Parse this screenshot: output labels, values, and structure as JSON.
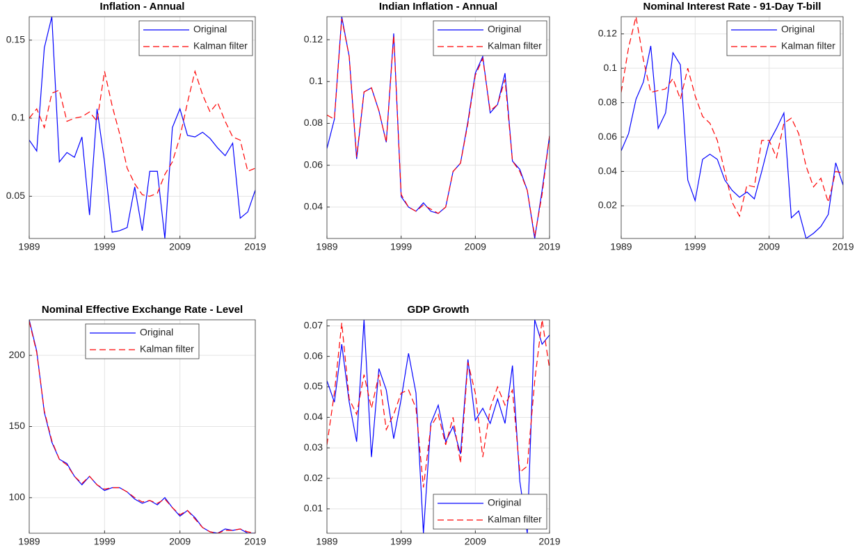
{
  "chart_data": [
    {
      "type": "line",
      "title": "Inflation - Annual",
      "x": [
        1989,
        1990,
        1991,
        1992,
        1993,
        1994,
        1995,
        1996,
        1997,
        1998,
        1999,
        2000,
        2001,
        2002,
        2003,
        2004,
        2005,
        2006,
        2007,
        2008,
        2009,
        2010,
        2011,
        2012,
        2013,
        2014,
        2015,
        2016,
        2017,
        2018,
        2019
      ],
      "xlim": [
        1989,
        2019
      ],
      "xticks": [
        1989,
        1999,
        2009,
        2019
      ],
      "ylim": [
        0.023,
        0.165
      ],
      "yticks": [
        0.05,
        0.1,
        0.15
      ],
      "grid": true,
      "legend": "northeast",
      "series": [
        {
          "name": "Original",
          "color": "#0000ff",
          "line_style": "solid",
          "values": [
            0.086,
            0.079,
            0.145,
            0.165,
            0.072,
            0.078,
            0.075,
            0.088,
            0.038,
            0.106,
            0.072,
            0.027,
            0.028,
            0.03,
            0.056,
            0.028,
            0.066,
            0.066,
            0.023,
            0.094,
            0.106,
            0.089,
            0.088,
            0.091,
            0.087,
            0.081,
            0.076,
            0.084,
            0.036,
            0.04,
            0.054
          ]
        },
        {
          "name": "Kalman filter",
          "color": "#ff0000",
          "line_style": "dashed",
          "values": [
            0.1,
            0.106,
            0.094,
            0.116,
            0.118,
            0.098,
            0.1,
            0.101,
            0.104,
            0.098,
            0.13,
            0.108,
            0.09,
            0.068,
            0.058,
            0.051,
            0.05,
            0.052,
            0.064,
            0.072,
            0.088,
            0.11,
            0.13,
            0.115,
            0.104,
            0.11,
            0.098,
            0.088,
            0.086,
            0.066,
            0.068
          ]
        }
      ]
    },
    {
      "type": "line",
      "title": "Indian Inflation - Annual",
      "x": [
        1989,
        1990,
        1991,
        1992,
        1993,
        1994,
        1995,
        1996,
        1997,
        1998,
        1999,
        2000,
        2001,
        2002,
        2003,
        2004,
        2005,
        2006,
        2007,
        2008,
        2009,
        2010,
        2011,
        2012,
        2013,
        2014,
        2015,
        2016,
        2017,
        2018,
        2019
      ],
      "xlim": [
        1989,
        2019
      ],
      "xticks": [
        1989,
        1999,
        2009,
        2019
      ],
      "ylim": [
        0.025,
        0.131
      ],
      "yticks": [
        0.04,
        0.06,
        0.08,
        0.1,
        0.12
      ],
      "grid": true,
      "legend": "northeast",
      "series": [
        {
          "name": "Original",
          "color": "#0000ff",
          "line_style": "solid",
          "values": [
            0.068,
            0.082,
            0.131,
            0.112,
            0.063,
            0.095,
            0.097,
            0.086,
            0.071,
            0.123,
            0.045,
            0.04,
            0.038,
            0.042,
            0.038,
            0.037,
            0.04,
            0.057,
            0.061,
            0.081,
            0.104,
            0.112,
            0.085,
            0.089,
            0.104,
            0.062,
            0.058,
            0.048,
            0.025,
            0.048,
            0.074
          ]
        },
        {
          "name": "Kalman filter",
          "color": "#ff0000",
          "line_style": "dashed",
          "values": [
            0.084,
            0.082,
            0.13,
            0.112,
            0.064,
            0.095,
            0.097,
            0.086,
            0.071,
            0.122,
            0.046,
            0.04,
            0.038,
            0.041,
            0.039,
            0.037,
            0.04,
            0.057,
            0.061,
            0.08,
            0.103,
            0.111,
            0.086,
            0.089,
            0.101,
            0.062,
            0.057,
            0.048,
            0.026,
            0.046,
            0.074
          ]
        }
      ]
    },
    {
      "type": "line",
      "title": "Nominal Interest Rate - 91-Day T-bill",
      "x": [
        1989,
        1990,
        1991,
        1992,
        1993,
        1994,
        1995,
        1996,
        1997,
        1998,
        1999,
        2000,
        2001,
        2002,
        2003,
        2004,
        2005,
        2006,
        2007,
        2008,
        2009,
        2010,
        2011,
        2012,
        2013,
        2014,
        2015,
        2016,
        2017,
        2018,
        2019
      ],
      "xlim": [
        1989,
        2019
      ],
      "xticks": [
        1989,
        1999,
        2009,
        2019
      ],
      "ylim": [
        0.001,
        0.13
      ],
      "yticks": [
        0.02,
        0.04,
        0.06,
        0.08,
        0.1,
        0.12
      ],
      "grid": true,
      "legend": "northeast",
      "series": [
        {
          "name": "Original",
          "color": "#0000ff",
          "line_style": "solid",
          "values": [
            0.052,
            0.062,
            0.082,
            0.092,
            0.113,
            0.065,
            0.074,
            0.109,
            0.102,
            0.035,
            0.023,
            0.047,
            0.05,
            0.047,
            0.035,
            0.029,
            0.025,
            0.028,
            0.024,
            0.04,
            0.057,
            0.065,
            0.074,
            0.013,
            0.017,
            0.001,
            0.004,
            0.008,
            0.015,
            0.045,
            0.032
          ]
        },
        {
          "name": "Kalman filter",
          "color": "#ff0000",
          "line_style": "dashed",
          "values": [
            0.086,
            0.112,
            0.13,
            0.105,
            0.086,
            0.087,
            0.088,
            0.094,
            0.082,
            0.1,
            0.084,
            0.072,
            0.068,
            0.058,
            0.04,
            0.022,
            0.014,
            0.032,
            0.031,
            0.058,
            0.058,
            0.048,
            0.068,
            0.071,
            0.062,
            0.043,
            0.031,
            0.036,
            0.022,
            0.04,
            0.039
          ]
        }
      ]
    },
    {
      "type": "line",
      "title": "Nominal Effective Exchange Rate - Level",
      "x": [
        1989,
        1990,
        1991,
        1992,
        1993,
        1994,
        1995,
        1996,
        1997,
        1998,
        1999,
        2000,
        2001,
        2002,
        2003,
        2004,
        2005,
        2006,
        2007,
        2008,
        2009,
        2010,
        2011,
        2012,
        2013,
        2014,
        2015,
        2016,
        2017,
        2018,
        2019
      ],
      "xlim": [
        1989,
        2019
      ],
      "xticks": [
        1989,
        1999,
        2009,
        2019
      ],
      "ylim": [
        75,
        225
      ],
      "yticks": [
        100,
        150,
        200
      ],
      "grid": true,
      "legend": "north",
      "series": [
        {
          "name": "Original",
          "color": "#0000ff",
          "line_style": "solid",
          "values": [
            225,
            203,
            160,
            139,
            127,
            124,
            115,
            109,
            115,
            109,
            105,
            107,
            107,
            104,
            99,
            96,
            98,
            95,
            100,
            93,
            87,
            91,
            86,
            79,
            76,
            75,
            78,
            77,
            78,
            75,
            75
          ]
        },
        {
          "name": "Kalman filter",
          "color": "#ff0000",
          "line_style": "dashed",
          "values": [
            224,
            202,
            161,
            140,
            127,
            123,
            115,
            110,
            115,
            109,
            106,
            107,
            107,
            104,
            100,
            97,
            98,
            96,
            99,
            93,
            88,
            91,
            85,
            79,
            76,
            75,
            77,
            77,
            78,
            76,
            75
          ]
        }
      ]
    },
    {
      "type": "line",
      "title": "GDP Growth",
      "x": [
        1989,
        1990,
        1991,
        1992,
        1993,
        1994,
        1995,
        1996,
        1997,
        1998,
        1999,
        2000,
        2001,
        2002,
        2003,
        2004,
        2005,
        2006,
        2007,
        2008,
        2009,
        2010,
        2011,
        2012,
        2013,
        2014,
        2015,
        2016,
        2017,
        2018,
        2019
      ],
      "xlim": [
        1989,
        2019
      ],
      "xticks": [
        1989,
        1999,
        2009,
        2019
      ],
      "ylim": [
        0.002,
        0.072
      ],
      "yticks": [
        0.01,
        0.02,
        0.03,
        0.04,
        0.05,
        0.06,
        0.07
      ],
      "grid": true,
      "legend": "southeast",
      "series": [
        {
          "name": "Original",
          "color": "#0000ff",
          "line_style": "solid",
          "values": [
            0.052,
            0.045,
            0.064,
            0.045,
            0.032,
            0.072,
            0.027,
            0.056,
            0.049,
            0.033,
            0.046,
            0.061,
            0.048,
            0.002,
            0.038,
            0.044,
            0.032,
            0.037,
            0.028,
            0.059,
            0.039,
            0.043,
            0.038,
            0.046,
            0.038,
            0.057,
            0.019,
            0.002,
            0.072,
            0.064,
            0.067
          ]
        },
        {
          "name": "Kalman filter",
          "color": "#ff0000",
          "line_style": "dashed",
          "values": [
            0.031,
            0.048,
            0.071,
            0.046,
            0.041,
            0.054,
            0.043,
            0.054,
            0.036,
            0.041,
            0.048,
            0.049,
            0.043,
            0.017,
            0.037,
            0.041,
            0.031,
            0.04,
            0.025,
            0.058,
            0.048,
            0.027,
            0.043,
            0.05,
            0.044,
            0.049,
            0.022,
            0.024,
            0.052,
            0.072,
            0.056
          ]
        }
      ]
    }
  ]
}
